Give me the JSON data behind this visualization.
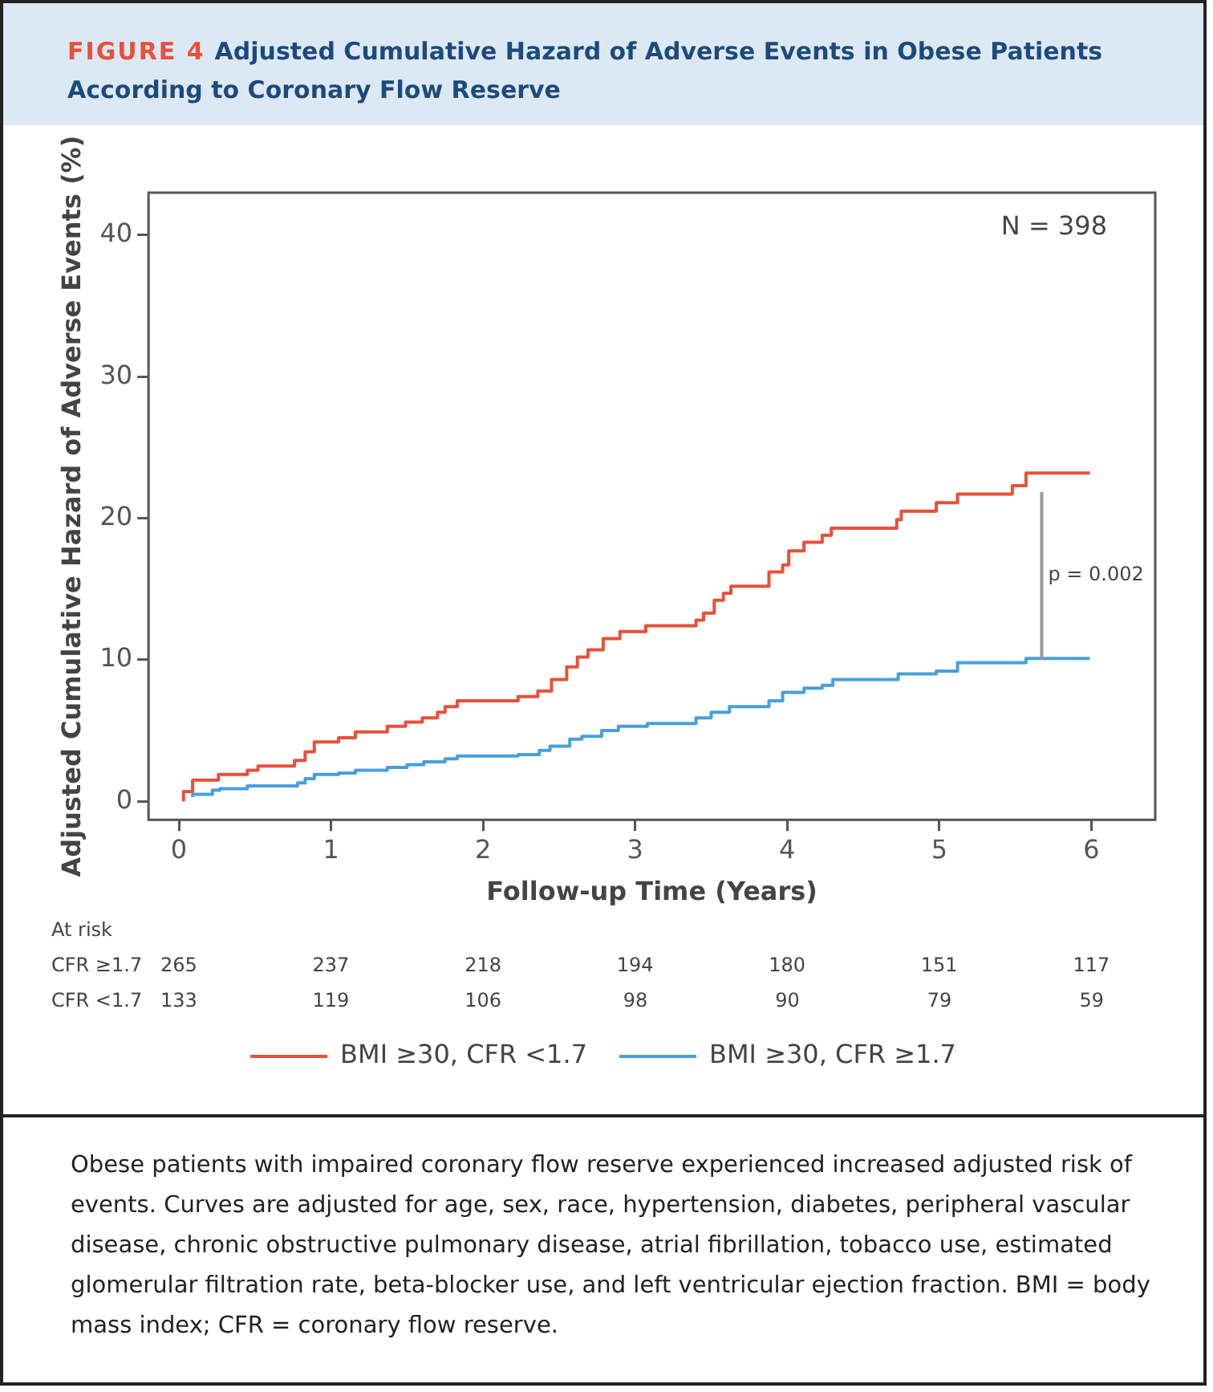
{
  "chart_data": {
    "type": "step",
    "title": "FIGURE 4 Adjusted Cumulative Hazard of Adverse Events in Obese Patients According to Coronary Flow Reserve",
    "xlabel": "Follow-up Time (Years)",
    "ylabel": "Adjusted Cumulative Hazard of Adverse Events (%)",
    "xlim": [
      -0.2,
      6.42
    ],
    "xticks": [
      0,
      1,
      2,
      3,
      4,
      5,
      6
    ],
    "ylim": [
      -1.3,
      43
    ],
    "yticks": [
      0,
      10,
      20,
      30,
      40
    ],
    "grid": false,
    "legend": "bottom",
    "line_style": "solid",
    "marker": "none",
    "series": [
      {
        "name": "BMI ≥30, CFR <1.7",
        "color": "#e8503a",
        "x": [
          0.03,
          0.09,
          0.26,
          0.45,
          0.52,
          0.76,
          0.83,
          0.89,
          1.05,
          1.16,
          1.37,
          1.49,
          1.6,
          1.7,
          1.75,
          1.83,
          2.23,
          2.36,
          2.45,
          2.55,
          2.62,
          2.69,
          2.79,
          2.9,
          3.07,
          3.4,
          3.45,
          3.52,
          3.58,
          3.63,
          3.88,
          3.97,
          4.01,
          4.11,
          4.23,
          4.29,
          4.72,
          4.75,
          4.98,
          5.12,
          5.48,
          5.57,
          5.89,
          5.99
        ],
        "values": [
          0,
          0.7,
          1.5,
          1.9,
          2.2,
          2.5,
          2.9,
          3.5,
          4.2,
          4.5,
          4.9,
          5.3,
          5.6,
          5.9,
          6.3,
          6.7,
          7.1,
          7.4,
          7.8,
          8.6,
          9.5,
          10.2,
          10.7,
          11.5,
          12,
          12.4,
          12.8,
          13.3,
          14.2,
          14.7,
          15.2,
          16.2,
          16.7,
          17.7,
          18.3,
          18.8,
          19.3,
          19.9,
          20.5,
          21.1,
          21.7,
          22.3,
          23.2,
          23.2
        ]
      },
      {
        "name": "BMI ≥30, CFR ≥1.7",
        "color": "#4a9fdb",
        "x": [
          0.09,
          0.22,
          0.27,
          0.45,
          0.78,
          0.83,
          0.89,
          1.05,
          1.16,
          1.37,
          1.5,
          1.61,
          1.75,
          1.83,
          2.23,
          2.37,
          2.44,
          2.57,
          2.65,
          2.78,
          2.89,
          3.08,
          3.4,
          3.5,
          3.62,
          3.88,
          3.97,
          4.11,
          4.23,
          4.3,
          4.73,
          4.98,
          5.12,
          5.57,
          5.89,
          5.99
        ],
        "values": [
          0.3,
          0.5,
          0.8,
          0.9,
          1.1,
          1.3,
          1.6,
          1.9,
          2,
          2.2,
          2.4,
          2.6,
          2.8,
          3,
          3.2,
          3.3,
          3.6,
          3.9,
          4.4,
          4.6,
          5,
          5.3,
          5.5,
          5.9,
          6.3,
          6.7,
          7.1,
          7.7,
          8,
          8.2,
          8.6,
          9,
          9.2,
          9.8,
          10.1,
          10.1
        ]
      }
    ],
    "annotations": [
      "N = 398",
      "p = 0.002",
      "At risk",
      "CFR ≥1.7",
      "265",
      "237",
      "218",
      "194",
      "180",
      "151",
      "117",
      "CFR <1.7",
      "133",
      "119",
      "106",
      "98",
      "90",
      "79",
      "59",
      "Obese patients with impaired coronary flow reserve experienced increased adjusted risk of events. Curves are adjusted for age, sex, race, hypertension, diabetes, peripheral vascular disease, chronic obstructive pulmonary disease, atrial fibrillation, tobacco use, estimated glomerular filtration rate, beta-blocker use, and left ventricular ejection fraction. BMI = body mass index; CFR = coronary flow reserve."
    ]
  }
}
